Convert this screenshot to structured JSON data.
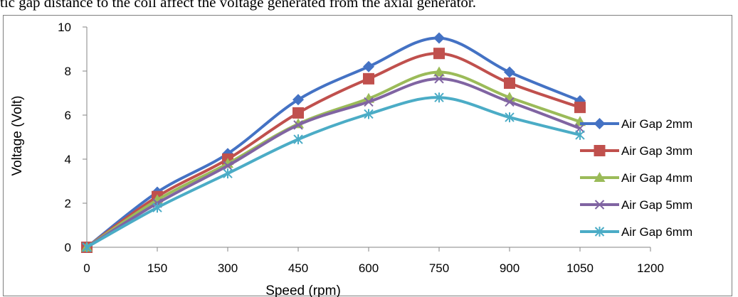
{
  "caption_fragment": "tic gap distance to the coil affect the voltage generated from the axial generator.",
  "chart_data": {
    "type": "line",
    "title": "",
    "xlabel": "Speed (rpm)",
    "ylabel": "Voltage (Volt)",
    "x": [
      0,
      150,
      300,
      450,
      600,
      750,
      900,
      1050
    ],
    "xlim": [
      0,
      1200
    ],
    "ylim": [
      0,
      10
    ],
    "xticks": [
      "0",
      "150",
      "300",
      "450",
      "600",
      "750",
      "900",
      "1050",
      "1200"
    ],
    "yticks": [
      "0",
      "2",
      "4",
      "6",
      "8",
      "10"
    ],
    "grid": false,
    "legend_position": "right",
    "series": [
      {
        "name": "Air Gap 2mm",
        "color": "#4472C4",
        "marker": "diamond",
        "values": [
          0,
          2.5,
          4.25,
          6.7,
          8.2,
          9.5,
          7.95,
          6.65
        ]
      },
      {
        "name": "Air Gap 3mm",
        "color": "#C0504D",
        "marker": "square",
        "values": [
          0,
          2.3,
          4.0,
          6.1,
          7.65,
          8.8,
          7.45,
          6.35
        ]
      },
      {
        "name": "Air Gap 4mm",
        "color": "#9BBB59",
        "marker": "triangle",
        "values": [
          0,
          2.15,
          3.8,
          5.6,
          6.75,
          7.95,
          6.8,
          5.7
        ]
      },
      {
        "name": "Air Gap 5mm",
        "color": "#8064A2",
        "marker": "x",
        "values": [
          0,
          2.0,
          3.7,
          5.55,
          6.6,
          7.65,
          6.6,
          5.4
        ]
      },
      {
        "name": "Air Gap 6mm",
        "color": "#4BACC6",
        "marker": "asterisk",
        "values": [
          0,
          1.8,
          3.35,
          4.9,
          6.05,
          6.8,
          5.9,
          5.1
        ]
      }
    ]
  }
}
